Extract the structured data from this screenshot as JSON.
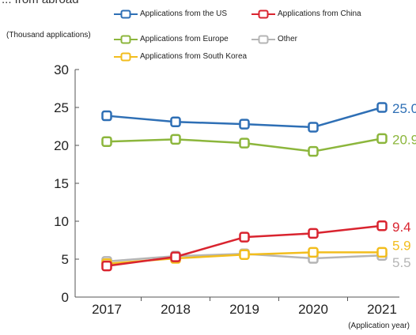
{
  "header_fragment": "... from abroad",
  "chart_data": {
    "type": "line",
    "title": "",
    "xlabel": "(Application year)",
    "ylabel": "(Thousand applications)",
    "x": [
      "2017",
      "2018",
      "2019",
      "2020",
      "2021"
    ],
    "yticks": [
      "0",
      "5",
      "10",
      "15",
      "20",
      "25",
      "30"
    ],
    "ylim": [
      0,
      30
    ],
    "grid": false,
    "legend_placement": "top",
    "series": [
      {
        "name": "Applications from the US",
        "color": "#2e6fb5",
        "values": [
          23.9,
          23.1,
          22.8,
          22.4,
          25.0
        ],
        "end_label": "25.0"
      },
      {
        "name": "Applications from China",
        "color": "#d9242f",
        "values": [
          4.1,
          5.3,
          7.9,
          8.4,
          9.4
        ],
        "end_label": "9.4"
      },
      {
        "name": "Applications from Europe",
        "color": "#8cb63c",
        "values": [
          20.5,
          20.8,
          20.3,
          19.2,
          20.9
        ],
        "end_label": "20.9"
      },
      {
        "name": "Other",
        "color": "#b5b5b5",
        "values": [
          4.7,
          5.4,
          5.7,
          5.1,
          5.5
        ],
        "end_label": "5.5"
      },
      {
        "name": "Applications from South Korea",
        "color": "#f2bd1d",
        "values": [
          4.4,
          5.1,
          5.6,
          5.9,
          5.9
        ],
        "end_label": "5.9"
      }
    ]
  }
}
